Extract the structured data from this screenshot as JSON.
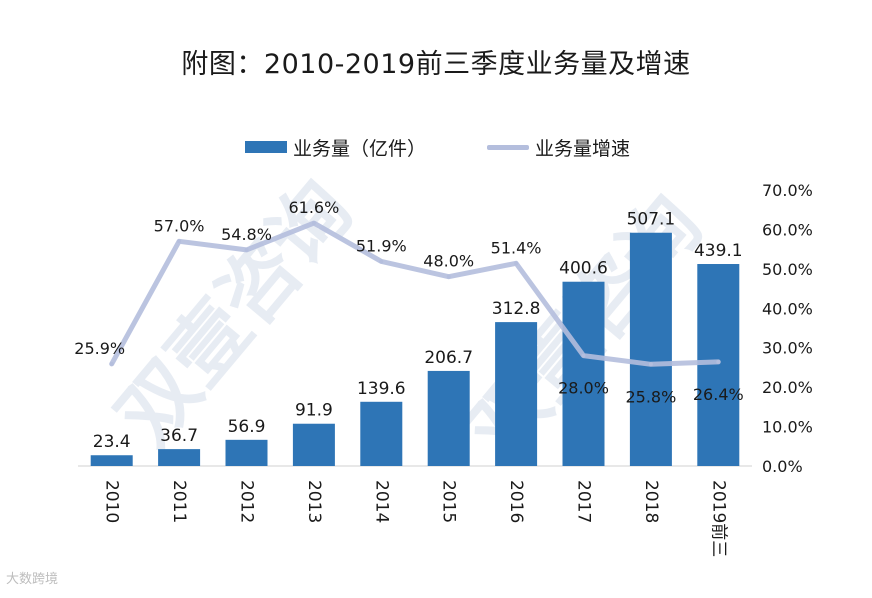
{
  "title": "附图：2010-2019前三季度业务量及增速",
  "watermark": "双壹咨询",
  "corner_logo": "大数跨境",
  "chart_data": {
    "type": "bar",
    "categories": [
      "2010",
      "2011",
      "2012",
      "2013",
      "2014",
      "2015",
      "2016",
      "2017",
      "2018",
      "2019前三"
    ],
    "series": [
      {
        "name": "业务量（亿件）",
        "type": "bar",
        "axis": "left",
        "color": "#2e75b6",
        "values": [
          23.4,
          36.7,
          56.9,
          91.9,
          139.6,
          206.7,
          312.8,
          400.6,
          507.1,
          439.1
        ],
        "labels": [
          "23.4",
          "36.7",
          "56.9",
          "91.9",
          "139.6",
          "206.7",
          "312.8",
          "400.6",
          "507.1",
          "439.1"
        ]
      },
      {
        "name": "业务量增速",
        "type": "line",
        "axis": "right",
        "color": "#b4bedd",
        "values": [
          25.9,
          57.0,
          54.8,
          61.6,
          51.9,
          48.0,
          51.4,
          28.0,
          25.8,
          26.4
        ],
        "labels": [
          "25.9%",
          "57.0%",
          "54.8%",
          "61.6%",
          "51.9%",
          "48.0%",
          "51.4%",
          "28.0%",
          "25.8%",
          "26.4%"
        ]
      }
    ],
    "y_left_range": [
      0,
      600
    ],
    "y_right_range": [
      0,
      70
    ],
    "y_right_ticks": [
      "0.0%",
      "10.0%",
      "20.0%",
      "30.0%",
      "40.0%",
      "50.0%",
      "60.0%",
      "70.0%"
    ],
    "legend_position": "top",
    "grid": false
  }
}
